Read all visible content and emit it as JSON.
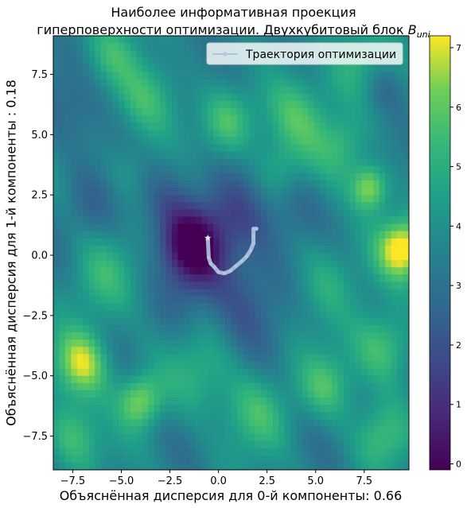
{
  "title_line1": "Наиболее информативная проекция",
  "title_line2": "гиперповерхности оптимизации. Двухкубитовый блок ",
  "title_symbol": "B",
  "title_subscript": "uni",
  "chart_data": {
    "type": "heatmap",
    "xlabel": "Объяснённая дисперсия для 0-й компоненты: 0.66",
    "ylabel": "Объяснённая дисперсия для 1-й компоненты : 0.18",
    "xlim": [
      -8.5,
      9.8
    ],
    "ylim": [
      -8.9,
      9.1
    ],
    "xticks": [
      -7.5,
      -5.0,
      -2.5,
      0.0,
      2.5,
      5.0,
      7.5
    ],
    "xtick_labels": [
      "−7.5",
      "−5.0",
      "−2.5",
      "0.0",
      "2.5",
      "5.0",
      "7.5"
    ],
    "yticks": [
      -7.5,
      -5.0,
      -2.5,
      0.0,
      2.5,
      5.0,
      7.5
    ],
    "ytick_labels": [
      "−7.5",
      "−5.0",
      "−2.5",
      "0.0",
      "2.5",
      "5.0",
      "7.5"
    ],
    "colorbar": {
      "range": [
        -0.1,
        7.2
      ],
      "ticks": [
        0,
        1,
        2,
        3,
        4,
        5,
        6,
        7
      ],
      "tick_labels": [
        "0",
        "1",
        "2",
        "3",
        "4",
        "5",
        "6",
        "7"
      ],
      "colormap": "viridis"
    },
    "legend": {
      "label": "Траектория оптимизации",
      "placement": "top-right"
    },
    "trajectory": {
      "name": "Траектория оптимизации",
      "color": "#b0c4de",
      "x": [
        -0.55,
        -0.5,
        -0.4,
        -0.2,
        0.0,
        0.3,
        0.6,
        0.9,
        1.2,
        1.45,
        1.65,
        1.8,
        1.8,
        1.8,
        1.95
      ],
      "y": [
        0.72,
        -0.1,
        -0.35,
        -0.5,
        -0.7,
        -0.75,
        -0.65,
        -0.45,
        -0.25,
        -0.05,
        0.2,
        0.5,
        0.8,
        1.1,
        1.1
      ]
    },
    "features": [
      {
        "x": -1.3,
        "y": 0.3,
        "v": -3.6,
        "s": 1.1
      },
      {
        "x": 1.0,
        "y": 1.5,
        "v": -1.6,
        "s": 1.3
      },
      {
        "x": 1.5,
        "y": -1.5,
        "v": -1.4,
        "s": 1.5
      },
      {
        "x": -2.5,
        "y": 2.5,
        "v": -1.2,
        "s": 1.4
      },
      {
        "x": 9.5,
        "y": 0.3,
        "v": 3.8,
        "s": 0.9
      },
      {
        "x": 7.8,
        "y": 2.8,
        "v": 3.2,
        "s": 0.7
      },
      {
        "x": -7.0,
        "y": -4.5,
        "v": 3.2,
        "s": 1.0
      },
      {
        "x": -4.0,
        "y": -6.0,
        "v": 2.8,
        "s": 0.8
      },
      {
        "x": 8.5,
        "y": -3.8,
        "v": 2.4,
        "s": 1.1
      },
      {
        "x": 4.0,
        "y": 5.8,
        "v": 2.0,
        "s": 1.3
      },
      {
        "x": -3.5,
        "y": 6.5,
        "v": 1.8,
        "s": 1.2
      },
      {
        "x": 0.5,
        "y": 5.5,
        "v": 2.0,
        "s": 1.0
      },
      {
        "x": 7.0,
        "y": 8.0,
        "v": 1.5,
        "s": 1.2
      },
      {
        "x": -7.5,
        "y": 6.0,
        "v": -1.0,
        "s": 1.2
      },
      {
        "x": 8.5,
        "y": 7.0,
        "v": -1.2,
        "s": 0.8
      },
      {
        "x": 5.5,
        "y": -1.0,
        "v": 1.5,
        "s": 1.2
      },
      {
        "x": 4.0,
        "y": 2.0,
        "v": -0.8,
        "s": 1.0
      },
      {
        "x": -6.0,
        "y": -1.0,
        "v": 1.4,
        "s": 1.3
      },
      {
        "x": -6.5,
        "y": 2.0,
        "v": -0.9,
        "s": 1.1
      },
      {
        "x": 5.5,
        "y": -5.5,
        "v": 1.8,
        "s": 1.0
      },
      {
        "x": -1.0,
        "y": -5.0,
        "v": 1.3,
        "s": 1.3
      },
      {
        "x": 2.0,
        "y": -6.5,
        "v": 1.6,
        "s": 1.2
      },
      {
        "x": -7.5,
        "y": -7.5,
        "v": 2.0,
        "s": 1.0
      },
      {
        "x": 8.5,
        "y": -7.5,
        "v": 1.6,
        "s": 1.0
      },
      {
        "x": -2.0,
        "y": -2.2,
        "v": -0.8,
        "s": 1.0
      },
      {
        "x": 3.0,
        "y": 3.5,
        "v": 1.2,
        "s": 0.9
      },
      {
        "x": -4.5,
        "y": 3.5,
        "v": 1.1,
        "s": 0.9
      },
      {
        "x": 1.5,
        "y": 8.0,
        "v": -0.6,
        "s": 1.2
      },
      {
        "x": -5.5,
        "y": 8.5,
        "v": 1.2,
        "s": 1.0
      },
      {
        "x": 6.5,
        "y": 4.5,
        "v": 1.4,
        "s": 0.9
      }
    ],
    "base_value": 3.6
  }
}
